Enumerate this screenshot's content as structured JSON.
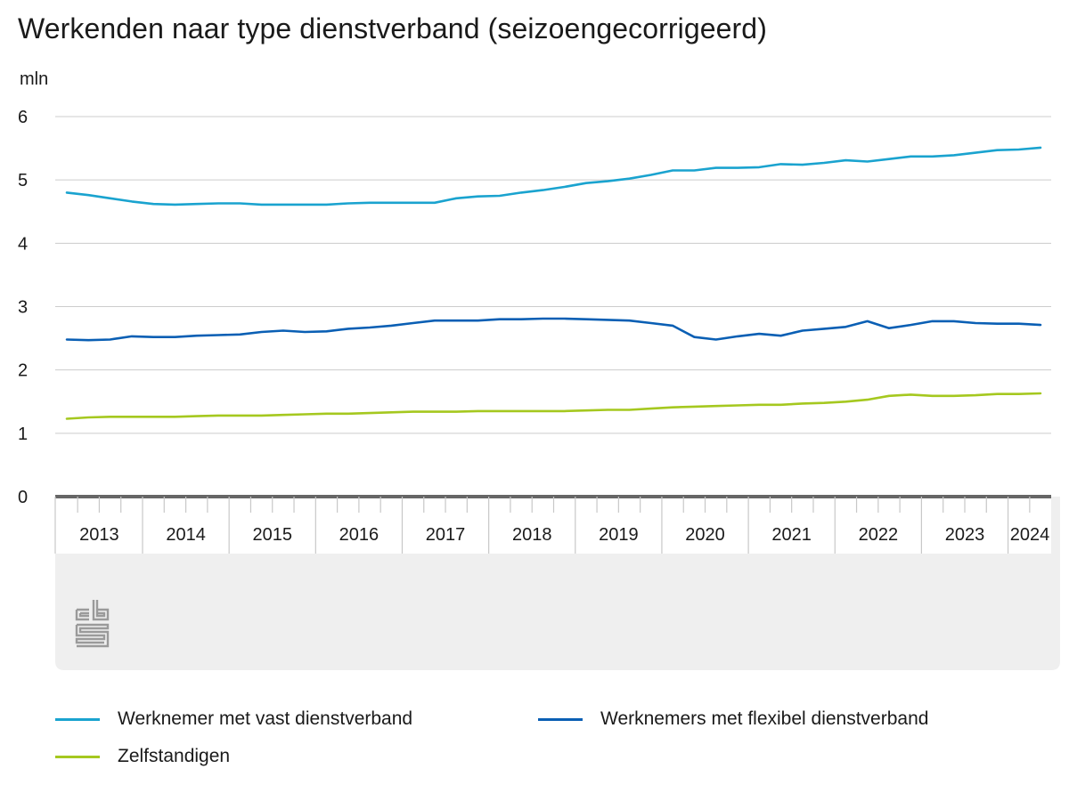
{
  "chart_data": {
    "type": "line",
    "title": "Werkenden naar type dienstverband (seizoengecorrigeerd)",
    "ylabel": "mln",
    "xlabel": "",
    "ylim": [
      0,
      6
    ],
    "yticks": [
      "0",
      "1",
      "2",
      "3",
      "4",
      "5",
      "6"
    ],
    "grid": true,
    "legend_position": "bottom",
    "x_start": "2013 Q1",
    "quarter_count": 46,
    "year_labels": [
      "2013",
      "2014",
      "2015",
      "2016",
      "2017",
      "2018",
      "2019",
      "2020",
      "2021",
      "2022",
      "2023",
      "2024"
    ],
    "series": [
      {
        "name": "Werknemer met vast dienstverband",
        "color": "#1aa3cf",
        "values": [
          4.8,
          4.76,
          4.71,
          4.66,
          4.62,
          4.61,
          4.62,
          4.63,
          4.63,
          4.61,
          4.61,
          4.61,
          4.61,
          4.63,
          4.64,
          4.64,
          4.64,
          4.64,
          4.71,
          4.74,
          4.75,
          4.8,
          4.84,
          4.89,
          4.95,
          4.98,
          5.02,
          5.08,
          5.15,
          5.15,
          5.19,
          5.19,
          5.2,
          5.25,
          5.24,
          5.27,
          5.31,
          5.29,
          5.33,
          5.37,
          5.37,
          5.39,
          5.43,
          5.47,
          5.48,
          5.51
        ]
      },
      {
        "name": "Werknemers met flexibel dienstverband",
        "color": "#0a5fb4",
        "values": [
          2.48,
          2.47,
          2.48,
          2.53,
          2.52,
          2.52,
          2.54,
          2.55,
          2.56,
          2.6,
          2.62,
          2.6,
          2.61,
          2.65,
          2.67,
          2.7,
          2.74,
          2.78,
          2.78,
          2.78,
          2.8,
          2.8,
          2.81,
          2.81,
          2.8,
          2.79,
          2.78,
          2.74,
          2.7,
          2.52,
          2.48,
          2.53,
          2.57,
          2.54,
          2.62,
          2.65,
          2.68,
          2.77,
          2.66,
          2.71,
          2.77,
          2.77,
          2.74,
          2.73,
          2.73,
          2.71
        ]
      },
      {
        "name": "Zelfstandigen",
        "color": "#a5c81f",
        "values": [
          1.23,
          1.25,
          1.26,
          1.26,
          1.26,
          1.26,
          1.27,
          1.28,
          1.28,
          1.28,
          1.29,
          1.3,
          1.31,
          1.31,
          1.32,
          1.33,
          1.34,
          1.34,
          1.34,
          1.35,
          1.35,
          1.35,
          1.35,
          1.35,
          1.36,
          1.37,
          1.37,
          1.39,
          1.41,
          1.42,
          1.43,
          1.44,
          1.45,
          1.45,
          1.47,
          1.48,
          1.5,
          1.53,
          1.59,
          1.61,
          1.59,
          1.59,
          1.6,
          1.62,
          1.62,
          1.63
        ]
      }
    ]
  },
  "colors": {
    "grid": "#cccccc",
    "axis": "#666666",
    "footer_bg": "#efefef",
    "logo": "#9a9a9a"
  },
  "logo": {
    "name": "cbs-logo",
    "text": "cbs"
  }
}
